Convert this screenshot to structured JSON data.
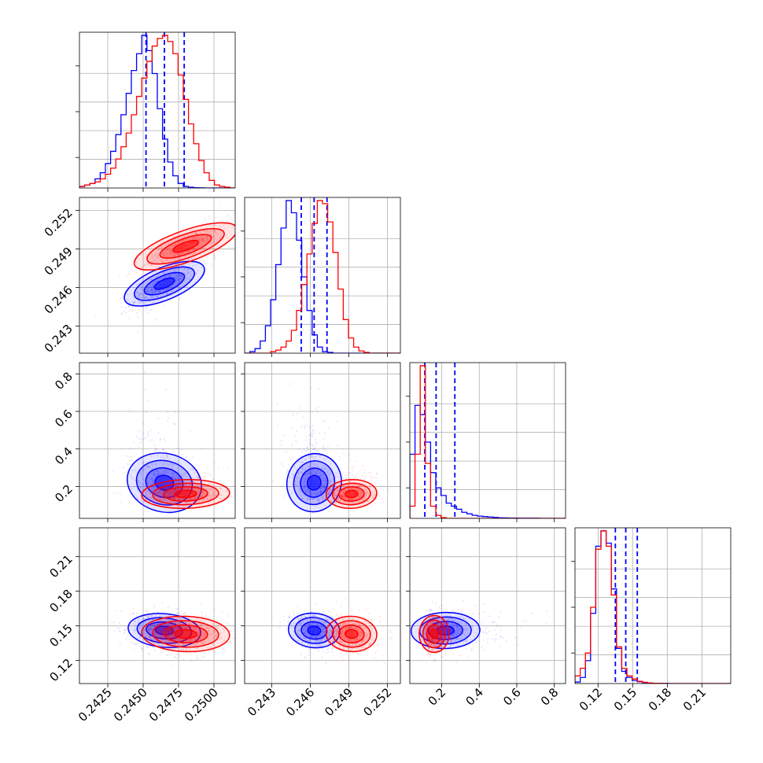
{
  "chart_data": {
    "type": "scatter",
    "title": "",
    "layout": "corner plot (lower-triangular grid, 4 parameters)",
    "grid": true,
    "colors": {
      "blue": "#0000ff",
      "red": "#ff0000"
    },
    "parameters": [
      {
        "ticks": [
          0.2425,
          0.245,
          0.2475,
          0.25
        ],
        "tick_labels": [
          "0.2425",
          "0.2450",
          "0.2475",
          "0.2500"
        ],
        "range": [
          0.2405,
          0.2515
        ]
      },
      {
        "ticks": [
          0.243,
          0.246,
          0.249,
          0.252
        ],
        "tick_labels": [
          "0.243",
          "0.246",
          "0.249",
          "0.252"
        ],
        "range": [
          0.2409,
          0.253
        ]
      },
      {
        "ticks": [
          0.2,
          0.4,
          0.6,
          0.8
        ],
        "tick_labels": [
          "0.2",
          "0.4",
          "0.6",
          "0.8"
        ],
        "range": [
          0.03,
          0.86
        ]
      },
      {
        "ticks": [
          0.12,
          0.15,
          0.18,
          0.21
        ],
        "tick_labels": [
          "0.12",
          "0.15",
          "0.18",
          "0.21"
        ],
        "range": [
          0.1,
          0.235
        ]
      }
    ],
    "series": [
      {
        "color": "#0000ff",
        "means": [
          0.2465,
          0.2463,
          0.22,
          0.146
        ],
        "sds": [
          0.0012,
          0.00095,
          0.09,
          0.008
        ],
        "correlations": [
          [
            1,
            0.75,
            -0.3,
            -0.2
          ],
          [
            0.75,
            1,
            -0.3,
            -0.15
          ],
          [
            -0.3,
            -0.3,
            1,
            0.05
          ],
          [
            -0.2,
            -0.15,
            0.05,
            1
          ]
        ],
        "quantile_lines": [
          [
            0.2452,
            0.2465,
            0.2479
          ],
          [
            0.2453,
            0.2463,
            0.2473
          ],
          [
            0.11,
            0.17,
            0.27
          ],
          [
            0.135,
            0.144,
            0.154
          ]
        ],
        "histograms": [
          {
            "edges": [
              0.2405,
              0.2515
            ],
            "counts": [
              0.01,
              0.02,
              0.03,
              0.06,
              0.1,
              0.16,
              0.24,
              0.35,
              0.48,
              0.62,
              0.77,
              0.88,
              1.0,
              0.9,
              0.75,
              0.52,
              0.32,
              0.17,
              0.08,
              0.03,
              0.01,
              0.005,
              0.002,
              0.001,
              0,
              0,
              0,
              0,
              0,
              0
            ]
          },
          {
            "edges": [
              0.2409,
              0.253
            ],
            "counts": [
              0,
              0.01,
              0.03,
              0.08,
              0.18,
              0.35,
              0.58,
              0.82,
              1.0,
              0.92,
              0.74,
              0.5,
              0.28,
              0.12,
              0.04,
              0.01,
              0.005,
              0,
              0,
              0,
              0,
              0,
              0,
              0,
              0,
              0,
              0,
              0,
              0,
              0
            ]
          },
          {
            "edges": [
              0.03,
              0.86
            ],
            "counts": [
              0.42,
              0.74,
              0.68,
              0.5,
              0.3,
              0.2,
              0.15,
              0.1,
              0.08,
              0.06,
              0.04,
              0.03,
              0.02,
              0.015,
              0.012,
              0.009,
              0.006,
              0.004,
              0.003,
              0.002,
              0.002,
              0.001,
              0.001,
              0.001,
              0.001,
              0,
              0,
              0,
              0,
              0
            ]
          },
          {
            "edges": [
              0.1,
              0.235
            ],
            "counts": [
              0.01,
              0.04,
              0.15,
              0.46,
              0.9,
              1.0,
              0.92,
              0.62,
              0.23,
              0.08,
              0.04,
              0.02,
              0.012,
              0.006,
              0.003,
              0.002,
              0.001,
              0.001,
              0,
              0,
              0,
              0,
              0,
              0,
              0,
              0,
              0,
              0,
              0,
              0
            ]
          }
        ]
      },
      {
        "color": "#ff0000",
        "means": [
          0.248,
          0.2492,
          0.16,
          0.143
        ],
        "sds": [
          0.0015,
          0.00095,
          0.04,
          0.008
        ],
        "correlations": [
          [
            1,
            0.8,
            0.1,
            -0.1
          ],
          [
            0.8,
            1,
            0.1,
            -0.1
          ],
          [
            0.1,
            0.1,
            1,
            0.0
          ],
          [
            -0.1,
            -0.1,
            0.0,
            1
          ]
        ],
        "quantile_lines": [],
        "histograms": [
          {
            "edges": [
              0.2405,
              0.2515
            ],
            "counts": [
              0.01,
              0.02,
              0.03,
              0.04,
              0.06,
              0.09,
              0.13,
              0.19,
              0.27,
              0.36,
              0.48,
              0.6,
              0.72,
              0.83,
              0.93,
              0.98,
              1.0,
              0.96,
              0.88,
              0.74,
              0.58,
              0.42,
              0.29,
              0.18,
              0.1,
              0.05,
              0.02,
              0.01,
              0.005,
              0
            ]
          },
          {
            "edges": [
              0.2409,
              0.253
            ],
            "counts": [
              0,
              0,
              0,
              0,
              0,
              0.01,
              0.02,
              0.04,
              0.08,
              0.15,
              0.28,
              0.45,
              0.65,
              0.85,
              1.0,
              0.98,
              0.86,
              0.66,
              0.42,
              0.22,
              0.1,
              0.04,
              0.015,
              0.005,
              0,
              0,
              0,
              0,
              0,
              0
            ]
          },
          {
            "edges": [
              0.03,
              0.86
            ],
            "counts": [
              0.08,
              0.42,
              1.0,
              0.36,
              0.08,
              0.02,
              0.005,
              0,
              0,
              0,
              0,
              0,
              0,
              0,
              0,
              0,
              0,
              0,
              0,
              0,
              0,
              0,
              0,
              0,
              0,
              0,
              0,
              0,
              0,
              0
            ]
          },
          {
            "edges": [
              0.1,
              0.235
            ],
            "counts": [
              0.05,
              0.1,
              0.2,
              0.5,
              0.88,
              1.0,
              0.9,
              0.58,
              0.24,
              0.1,
              0.05,
              0.03,
              0.015,
              0.008,
              0.004,
              0.002,
              0.001,
              0,
              0,
              0,
              0,
              0,
              0,
              0,
              0,
              0,
              0,
              0,
              0,
              0
            ]
          }
        ]
      }
    ]
  }
}
